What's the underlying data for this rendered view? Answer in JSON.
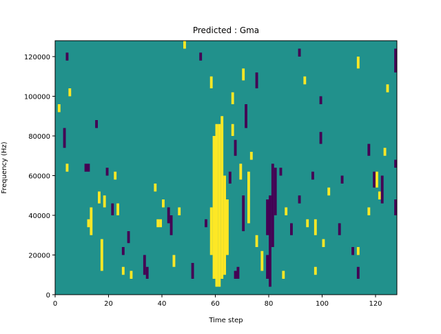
{
  "chart_data": {
    "type": "heatmap",
    "title": "Predicted : Gma",
    "x_label": "Time step",
    "y_label": "Frequency (Hz)",
    "xlim": [
      0,
      128
    ],
    "ylim": [
      0,
      128000
    ],
    "xticks": [
      0,
      20,
      40,
      60,
      80,
      100,
      120
    ],
    "yticks": [
      0,
      20000,
      40000,
      60000,
      80000,
      100000,
      120000
    ],
    "colors": {
      "-1": "#440154",
      "0": "#21918c",
      "1": "#fde725"
    },
    "background_value": 0,
    "cells": [
      {
        "t": 58,
        "f0": 20000,
        "f1": 44000,
        "v": 1
      },
      {
        "t": 59,
        "f0": 8000,
        "f1": 80000,
        "v": 1
      },
      {
        "t": 60,
        "f0": 4000,
        "f1": 86000,
        "v": 1
      },
      {
        "t": 61,
        "f0": 4000,
        "f1": 86000,
        "v": 1
      },
      {
        "t": 62,
        "f0": 8000,
        "f1": 90000,
        "v": 1
      },
      {
        "t": 63,
        "f0": 10000,
        "f1": 60000,
        "v": 1
      },
      {
        "t": 64,
        "f0": 20000,
        "f1": 48000,
        "v": 1
      },
      {
        "t": 13,
        "f0": 30000,
        "f1": 44000,
        "v": 1
      },
      {
        "t": 12,
        "f0": 34000,
        "f1": 38000,
        "v": 1
      },
      {
        "t": 4,
        "f0": 62000,
        "f1": 66000,
        "v": 1
      },
      {
        "t": 17,
        "f0": 12000,
        "f1": 28000,
        "v": 1
      },
      {
        "t": 16,
        "f0": 46000,
        "f1": 52000,
        "v": 1
      },
      {
        "t": 18,
        "f0": 44000,
        "f1": 50000,
        "v": 1
      },
      {
        "t": 22,
        "f0": 58000,
        "f1": 62000,
        "v": 1
      },
      {
        "t": 23,
        "f0": 40000,
        "f1": 46000,
        "v": 1
      },
      {
        "t": 25,
        "f0": 10000,
        "f1": 14000,
        "v": 1
      },
      {
        "t": 28,
        "f0": 8000,
        "f1": 12000,
        "v": 1
      },
      {
        "t": 37,
        "f0": 52000,
        "f1": 56000,
        "v": 1
      },
      {
        "t": 38,
        "f0": 34000,
        "f1": 38000,
        "v": 1
      },
      {
        "t": 39,
        "f0": 34000,
        "f1": 38000,
        "v": 1
      },
      {
        "t": 40,
        "f0": 44000,
        "f1": 48000,
        "v": 1
      },
      {
        "t": 44,
        "f0": 14000,
        "f1": 20000,
        "v": 1
      },
      {
        "t": 46,
        "f0": 40000,
        "f1": 44000,
        "v": 1
      },
      {
        "t": 66,
        "f0": 80000,
        "f1": 86000,
        "v": 1
      },
      {
        "t": 69,
        "f0": 58000,
        "f1": 66000,
        "v": 1
      },
      {
        "t": 72,
        "f0": 36000,
        "f1": 62000,
        "v": 1
      },
      {
        "t": 73,
        "f0": 68000,
        "f1": 72000,
        "v": 1
      },
      {
        "t": 75,
        "f0": 24000,
        "f1": 30000,
        "v": 1
      },
      {
        "t": 77,
        "f0": 12000,
        "f1": 22000,
        "v": 1
      },
      {
        "t": 85,
        "f0": 8000,
        "f1": 12000,
        "v": 1
      },
      {
        "t": 86,
        "f0": 40000,
        "f1": 44000,
        "v": 1
      },
      {
        "t": 94,
        "f0": 34000,
        "f1": 38000,
        "v": 1
      },
      {
        "t": 97,
        "f0": 30000,
        "f1": 38000,
        "v": 1
      },
      {
        "t": 97,
        "f0": 10000,
        "f1": 14000,
        "v": 1
      },
      {
        "t": 100,
        "f0": 24000,
        "f1": 28000,
        "v": 1
      },
      {
        "t": 102,
        "f0": 50000,
        "f1": 54000,
        "v": 1
      },
      {
        "t": 113,
        "f0": 20000,
        "f1": 24000,
        "v": 1
      },
      {
        "t": 117,
        "f0": 40000,
        "f1": 44000,
        "v": 1
      },
      {
        "t": 120,
        "f0": 54000,
        "f1": 62000,
        "v": 1
      },
      {
        "t": 121,
        "f0": 48000,
        "f1": 52000,
        "v": 1
      },
      {
        "t": 123,
        "f0": 70000,
        "f1": 74000,
        "v": 1
      },
      {
        "t": 124,
        "f0": 102000,
        "f1": 106000,
        "v": 1
      },
      {
        "t": 113,
        "f0": 114000,
        "f1": 120000,
        "v": 1
      },
      {
        "t": 58,
        "f0": 104000,
        "f1": 110000,
        "v": 1
      },
      {
        "t": 66,
        "f0": 96000,
        "f1": 102000,
        "v": 1
      },
      {
        "t": 70,
        "f0": 108000,
        "f1": 114000,
        "v": 1
      },
      {
        "t": 93,
        "f0": 106000,
        "f1": 110000,
        "v": 1
      },
      {
        "t": 5,
        "f0": 100000,
        "f1": 104000,
        "v": 1
      },
      {
        "t": 1,
        "f0": 92000,
        "f1": 96000,
        "v": 1
      },
      {
        "t": 48,
        "f0": 124000,
        "f1": 128000,
        "v": 1
      },
      {
        "t": 3,
        "f0": 74000,
        "f1": 84000,
        "v": -1
      },
      {
        "t": 4,
        "f0": 118000,
        "f1": 122000,
        "v": -1
      },
      {
        "t": 11,
        "f0": 62000,
        "f1": 66000,
        "v": -1
      },
      {
        "t": 12,
        "f0": 62000,
        "f1": 66000,
        "v": -1
      },
      {
        "t": 15,
        "f0": 84000,
        "f1": 88000,
        "v": -1
      },
      {
        "t": 19,
        "f0": 60000,
        "f1": 64000,
        "v": -1
      },
      {
        "t": 21,
        "f0": 40000,
        "f1": 46000,
        "v": -1
      },
      {
        "t": 25,
        "f0": 20000,
        "f1": 24000,
        "v": -1
      },
      {
        "t": 27,
        "f0": 26000,
        "f1": 32000,
        "v": -1
      },
      {
        "t": 33,
        "f0": 10000,
        "f1": 20000,
        "v": -1
      },
      {
        "t": 34,
        "f0": 8000,
        "f1": 14000,
        "v": -1
      },
      {
        "t": 42,
        "f0": 36000,
        "f1": 44000,
        "v": -1
      },
      {
        "t": 43,
        "f0": 30000,
        "f1": 40000,
        "v": -1
      },
      {
        "t": 51,
        "f0": 8000,
        "f1": 16000,
        "v": -1
      },
      {
        "t": 56,
        "f0": 34000,
        "f1": 38000,
        "v": -1
      },
      {
        "t": 54,
        "f0": 118000,
        "f1": 122000,
        "v": -1
      },
      {
        "t": 67,
        "f0": 8000,
        "f1": 12000,
        "v": -1
      },
      {
        "t": 68,
        "f0": 8000,
        "f1": 14000,
        "v": -1
      },
      {
        "t": 70,
        "f0": 32000,
        "f1": 50000,
        "v": -1
      },
      {
        "t": 65,
        "f0": 56000,
        "f1": 62000,
        "v": -1
      },
      {
        "t": 67,
        "f0": 70000,
        "f1": 78000,
        "v": -1
      },
      {
        "t": 71,
        "f0": 84000,
        "f1": 96000,
        "v": -1
      },
      {
        "t": 75,
        "f0": 104000,
        "f1": 112000,
        "v": -1
      },
      {
        "t": 79,
        "f0": 8000,
        "f1": 20000,
        "v": -1
      },
      {
        "t": 79,
        "f0": 30000,
        "f1": 48000,
        "v": -1
      },
      {
        "t": 80,
        "f0": 4000,
        "f1": 50000,
        "v": -1
      },
      {
        "t": 81,
        "f0": 24000,
        "f1": 66000,
        "v": -1
      },
      {
        "t": 82,
        "f0": 40000,
        "f1": 64000,
        "v": -1
      },
      {
        "t": 84,
        "f0": 60000,
        "f1": 64000,
        "v": -1
      },
      {
        "t": 88,
        "f0": 30000,
        "f1": 36000,
        "v": -1
      },
      {
        "t": 91,
        "f0": 46000,
        "f1": 50000,
        "v": -1
      },
      {
        "t": 96,
        "f0": 58000,
        "f1": 62000,
        "v": -1
      },
      {
        "t": 99,
        "f0": 76000,
        "f1": 82000,
        "v": -1
      },
      {
        "t": 106,
        "f0": 30000,
        "f1": 36000,
        "v": -1
      },
      {
        "t": 107,
        "f0": 56000,
        "f1": 60000,
        "v": -1
      },
      {
        "t": 111,
        "f0": 20000,
        "f1": 24000,
        "v": -1
      },
      {
        "t": 113,
        "f0": 8000,
        "f1": 14000,
        "v": -1
      },
      {
        "t": 117,
        "f0": 70000,
        "f1": 76000,
        "v": -1
      },
      {
        "t": 119,
        "f0": 54000,
        "f1": 62000,
        "v": -1
      },
      {
        "t": 122,
        "f0": 46000,
        "f1": 60000,
        "v": -1
      },
      {
        "t": 127,
        "f0": 40000,
        "f1": 48000,
        "v": -1
      },
      {
        "t": 127,
        "f0": 64000,
        "f1": 68000,
        "v": -1
      },
      {
        "t": 127,
        "f0": 112000,
        "f1": 124000,
        "v": -1
      },
      {
        "t": 99,
        "f0": 96000,
        "f1": 100000,
        "v": -1
      },
      {
        "t": 91,
        "f0": 120000,
        "f1": 124000,
        "v": -1
      }
    ]
  }
}
